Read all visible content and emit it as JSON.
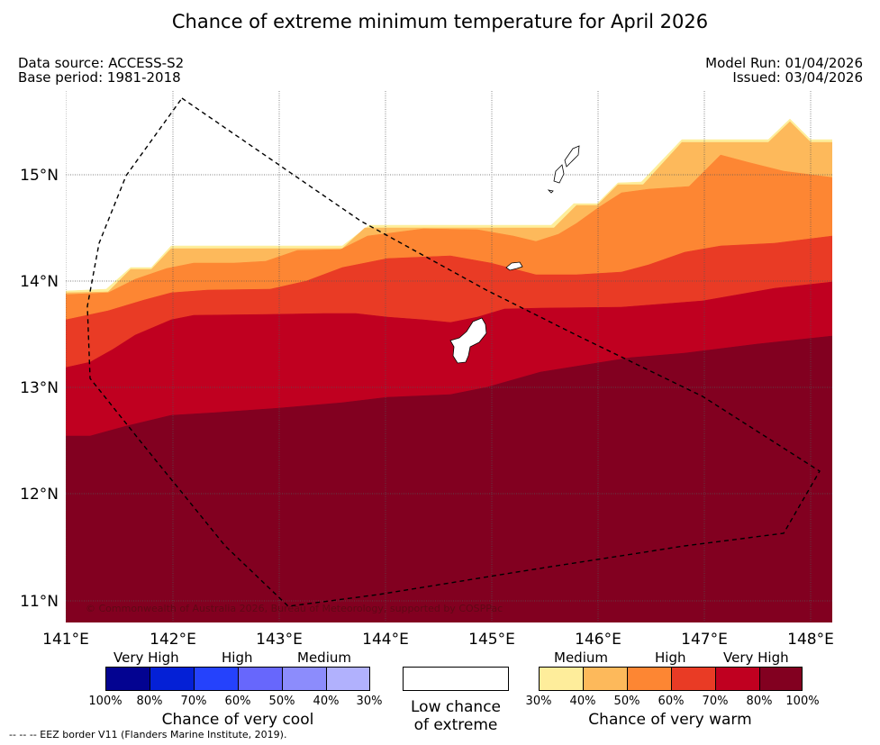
{
  "title": "Chance of extreme minimum temperature for April 2026",
  "info": {
    "data_source": "Data source: ACCESS-S2",
    "base_period": "Base period: 1981-2018",
    "model_run": "Model Run: 01/04/2026",
    "issued": "Issued: 03/04/2026"
  },
  "map": {
    "lon_labels": [
      "141°E",
      "142°E",
      "143°E",
      "144°E",
      "145°E",
      "146°E",
      "147°E",
      "148°E"
    ],
    "lat_labels": [
      "15°N",
      "14°N",
      "13°N",
      "12°N",
      "11°N"
    ],
    "copyright": "© Commonwealth of Australia 2026, Bureau of Meteorology, supported by COSPPac",
    "bands": [
      {
        "name": "30-40%",
        "color": "#fdee9b"
      },
      {
        "name": "40-50%",
        "color": "#fdb95b"
      },
      {
        "name": "50-60%",
        "color": "#fd8633"
      },
      {
        "name": "60-70%",
        "color": "#e93b25"
      },
      {
        "name": "70-80%",
        "color": "#c00020"
      },
      {
        "name": "80-100%",
        "color": "#820020"
      }
    ]
  },
  "legend": {
    "cool": {
      "categories": [
        "Very High",
        "High",
        "Medium"
      ],
      "colors": [
        "#030391",
        "#0420d6",
        "#2542fc",
        "#6767fc",
        "#8c8cfc",
        "#b1b1fd"
      ],
      "pcts": [
        "100%",
        "80%",
        "70%",
        "60%",
        "50%",
        "40%",
        "30%"
      ],
      "title": "Chance of very cool"
    },
    "neutral": {
      "line1": "Low chance",
      "line2": "of extreme"
    },
    "warm": {
      "categories": [
        "Medium",
        "High",
        "Very High"
      ],
      "colors": [
        "#feed9b",
        "#fdb95b",
        "#fd8633",
        "#e93b25",
        "#c00020",
        "#820020"
      ],
      "pcts": [
        "30%",
        "40%",
        "50%",
        "60%",
        "70%",
        "80%",
        "100%"
      ],
      "title": "Chance of very warm"
    }
  },
  "footnote": "--  --  -- EEZ border V11 (Flanders Marine Institute, 2019)."
}
